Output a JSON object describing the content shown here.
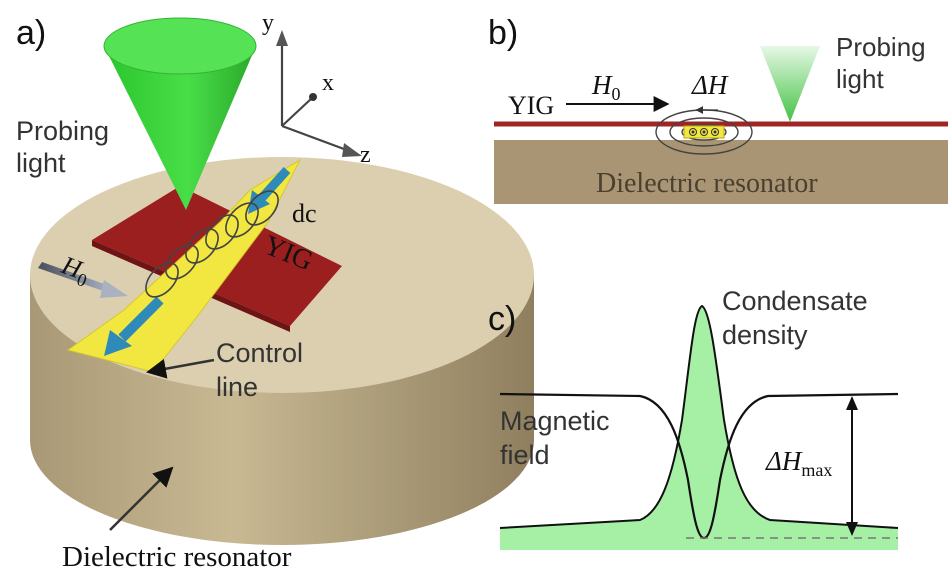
{
  "panels": {
    "a": {
      "label": "a)",
      "probing_light": [
        "Probing",
        "light"
      ],
      "axes": {
        "x": "x",
        "y": "y",
        "z": "z"
      },
      "field_symbol": "H",
      "field_subscript": "0",
      "dc_label": "dc",
      "yig_label": "YIG",
      "control_line": [
        "Control",
        "line"
      ],
      "resonator_label": "Dielectric resonator",
      "colors": {
        "resonator_top": "#dccfb0",
        "resonator_side": "#c3b48e",
        "yig": "#9c1f1f",
        "cone": "#3ed63e",
        "strip": "#f2e640",
        "arrow": "#2e8ab8"
      }
    },
    "b": {
      "label": "b)",
      "yig_label": "YIG",
      "field_symbol": "H",
      "field_subscript": "0",
      "delta_h": "ΔH",
      "probing_light": [
        "Probing",
        "light"
      ],
      "resonator_label": "Dielectric resonator",
      "colors": {
        "resonator": "#a99574",
        "yig_line": "#a12424",
        "strip": "#f2e640",
        "cone": "#3ed63e"
      }
    },
    "c": {
      "label": "c)",
      "condensate_label": [
        "Condensate",
        "density"
      ],
      "magnetic_field_label": [
        "Magnetic",
        "field"
      ],
      "delta_h_max": "ΔH",
      "delta_h_max_sub": "max",
      "colors": {
        "fill": "#a6f0a6",
        "line": "#111111"
      }
    }
  }
}
